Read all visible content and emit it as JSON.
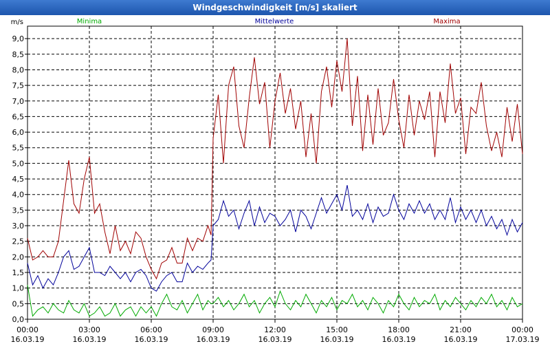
{
  "window": {
    "title": "Windgeschwindigkeit [m/s] skaliert"
  },
  "chart_data": {
    "type": "line",
    "title": "Windgeschwindigkeit [m/s] skaliert",
    "ylabel": "m/s",
    "xlabel": "",
    "ylim": [
      0,
      9.4
    ],
    "xlim": [
      0,
      24
    ],
    "yticks": [
      0,
      0.5,
      1,
      1.5,
      2,
      2.5,
      3,
      3.5,
      4,
      4.5,
      5,
      5.5,
      6,
      6.5,
      7,
      7.5,
      8,
      8.5,
      9
    ],
    "ytick_labels": [
      "0,0",
      "0,5",
      "1,0",
      "1,5",
      "2,0",
      "2,5",
      "3,0",
      "3,5",
      "4,0",
      "4,5",
      "5,0",
      "5,5",
      "6,0",
      "6,5",
      "7,0",
      "7,5",
      "8,0",
      "8,5",
      "9,0"
    ],
    "xticks": [
      {
        "hour": 0,
        "time": "00:00",
        "date": "16.03.19"
      },
      {
        "hour": 3,
        "time": "03:00",
        "date": "16.03.19"
      },
      {
        "hour": 6,
        "time": "06:00",
        "date": "16.03.19"
      },
      {
        "hour": 9,
        "time": "09:00",
        "date": "16.03.19"
      },
      {
        "hour": 12,
        "time": "12:00",
        "date": "16.03.19"
      },
      {
        "hour": 15,
        "time": "15:00",
        "date": "16.03.19"
      },
      {
        "hour": 18,
        "time": "18:00",
        "date": "16.03.19"
      },
      {
        "hour": 21,
        "time": "21:00",
        "date": "16.03.19"
      },
      {
        "hour": 24,
        "time": "00:00",
        "date": "17.03.19"
      }
    ],
    "legend": [
      {
        "name": "Minima",
        "color": "#00aa00"
      },
      {
        "name": "Mittelwerte",
        "color": "#00009a"
      },
      {
        "name": "Maxima",
        "color": "#a00000"
      }
    ],
    "grid": true,
    "series": [
      {
        "name": "Maxima",
        "color": "#a00000",
        "points": [
          [
            0.0,
            2.6
          ],
          [
            0.25,
            1.9
          ],
          [
            0.5,
            2.0
          ],
          [
            0.75,
            2.2
          ],
          [
            1.0,
            2.0
          ],
          [
            1.25,
            2.0
          ],
          [
            1.5,
            2.5
          ],
          [
            1.75,
            3.8
          ],
          [
            2.0,
            5.1
          ],
          [
            2.25,
            3.7
          ],
          [
            2.5,
            3.4
          ],
          [
            2.75,
            4.5
          ],
          [
            3.0,
            5.2
          ],
          [
            3.25,
            3.4
          ],
          [
            3.5,
            3.7
          ],
          [
            3.75,
            2.8
          ],
          [
            4.0,
            2.1
          ],
          [
            4.25,
            3.0
          ],
          [
            4.5,
            2.2
          ],
          [
            4.75,
            2.5
          ],
          [
            5.0,
            2.1
          ],
          [
            5.25,
            2.8
          ],
          [
            5.5,
            2.6
          ],
          [
            5.75,
            2.0
          ],
          [
            6.0,
            1.6
          ],
          [
            6.25,
            1.3
          ],
          [
            6.5,
            1.8
          ],
          [
            6.75,
            1.9
          ],
          [
            7.0,
            2.3
          ],
          [
            7.25,
            1.8
          ],
          [
            7.5,
            1.8
          ],
          [
            7.75,
            2.6
          ],
          [
            8.0,
            2.2
          ],
          [
            8.25,
            2.6
          ],
          [
            8.5,
            2.5
          ],
          [
            8.75,
            3.0
          ],
          [
            8.9,
            2.7
          ],
          [
            9.0,
            5.8
          ],
          [
            9.25,
            7.2
          ],
          [
            9.5,
            5.0
          ],
          [
            9.75,
            7.5
          ],
          [
            10.0,
            8.1
          ],
          [
            10.25,
            6.2
          ],
          [
            10.5,
            5.5
          ],
          [
            10.75,
            7.1
          ],
          [
            11.0,
            8.4
          ],
          [
            11.25,
            6.9
          ],
          [
            11.5,
            7.6
          ],
          [
            11.75,
            5.5
          ],
          [
            12.0,
            7.0
          ],
          [
            12.25,
            7.9
          ],
          [
            12.5,
            6.6
          ],
          [
            12.75,
            7.4
          ],
          [
            13.0,
            6.1
          ],
          [
            13.25,
            7.0
          ],
          [
            13.5,
            5.2
          ],
          [
            13.75,
            6.6
          ],
          [
            14.0,
            5.0
          ],
          [
            14.25,
            7.3
          ],
          [
            14.5,
            8.1
          ],
          [
            14.75,
            6.8
          ],
          [
            15.0,
            8.3
          ],
          [
            15.25,
            7.3
          ],
          [
            15.5,
            9.0
          ],
          [
            15.75,
            6.2
          ],
          [
            16.0,
            7.8
          ],
          [
            16.25,
            5.4
          ],
          [
            16.5,
            7.2
          ],
          [
            16.75,
            5.6
          ],
          [
            17.0,
            7.4
          ],
          [
            17.25,
            5.9
          ],
          [
            17.5,
            6.3
          ],
          [
            17.75,
            7.7
          ],
          [
            18.0,
            6.4
          ],
          [
            18.25,
            5.5
          ],
          [
            18.5,
            7.2
          ],
          [
            18.75,
            5.9
          ],
          [
            19.0,
            7.0
          ],
          [
            19.25,
            6.4
          ],
          [
            19.5,
            7.3
          ],
          [
            19.75,
            5.2
          ],
          [
            20.0,
            7.3
          ],
          [
            20.25,
            6.3
          ],
          [
            20.5,
            8.2
          ],
          [
            20.75,
            6.6
          ],
          [
            21.0,
            7.1
          ],
          [
            21.25,
            5.3
          ],
          [
            21.5,
            6.8
          ],
          [
            21.75,
            6.6
          ],
          [
            22.0,
            7.6
          ],
          [
            22.25,
            6.2
          ],
          [
            22.5,
            5.4
          ],
          [
            22.75,
            6.0
          ],
          [
            23.0,
            5.2
          ],
          [
            23.25,
            6.8
          ],
          [
            23.5,
            5.7
          ],
          [
            23.75,
            6.9
          ],
          [
            24.0,
            5.3
          ]
        ]
      },
      {
        "name": "Mittelwerte",
        "color": "#00009a",
        "points": [
          [
            0.0,
            1.8
          ],
          [
            0.25,
            1.1
          ],
          [
            0.5,
            1.4
          ],
          [
            0.75,
            1.0
          ],
          [
            1.0,
            1.3
          ],
          [
            1.25,
            1.1
          ],
          [
            1.5,
            1.5
          ],
          [
            1.75,
            2.0
          ],
          [
            2.0,
            2.2
          ],
          [
            2.25,
            1.6
          ],
          [
            2.5,
            1.7
          ],
          [
            2.75,
            2.0
          ],
          [
            3.0,
            2.3
          ],
          [
            3.25,
            1.5
          ],
          [
            3.5,
            1.5
          ],
          [
            3.75,
            1.4
          ],
          [
            4.0,
            1.7
          ],
          [
            4.25,
            1.5
          ],
          [
            4.5,
            1.3
          ],
          [
            4.75,
            1.5
          ],
          [
            5.0,
            1.2
          ],
          [
            5.25,
            1.5
          ],
          [
            5.5,
            1.6
          ],
          [
            5.75,
            1.4
          ],
          [
            6.0,
            1.0
          ],
          [
            6.25,
            0.9
          ],
          [
            6.5,
            1.2
          ],
          [
            6.75,
            1.4
          ],
          [
            7.0,
            1.5
          ],
          [
            7.25,
            1.2
          ],
          [
            7.5,
            1.2
          ],
          [
            7.75,
            1.8
          ],
          [
            8.0,
            1.5
          ],
          [
            8.25,
            1.7
          ],
          [
            8.5,
            1.6
          ],
          [
            8.75,
            1.8
          ],
          [
            8.9,
            1.9
          ],
          [
            9.0,
            3.0
          ],
          [
            9.25,
            3.2
          ],
          [
            9.5,
            3.8
          ],
          [
            9.75,
            3.3
          ],
          [
            10.0,
            3.5
          ],
          [
            10.25,
            2.9
          ],
          [
            10.5,
            3.4
          ],
          [
            10.75,
            3.8
          ],
          [
            11.0,
            3.0
          ],
          [
            11.25,
            3.6
          ],
          [
            11.5,
            3.1
          ],
          [
            11.75,
            3.4
          ],
          [
            12.0,
            3.3
          ],
          [
            12.25,
            3.0
          ],
          [
            12.5,
            3.2
          ],
          [
            12.75,
            3.5
          ],
          [
            13.0,
            2.8
          ],
          [
            13.25,
            3.5
          ],
          [
            13.5,
            3.3
          ],
          [
            13.75,
            2.9
          ],
          [
            14.0,
            3.4
          ],
          [
            14.25,
            3.9
          ],
          [
            14.5,
            3.4
          ],
          [
            14.75,
            3.7
          ],
          [
            15.0,
            4.0
          ],
          [
            15.25,
            3.5
          ],
          [
            15.5,
            4.3
          ],
          [
            15.75,
            3.3
          ],
          [
            16.0,
            3.5
          ],
          [
            16.25,
            3.2
          ],
          [
            16.5,
            3.7
          ],
          [
            16.75,
            3.1
          ],
          [
            17.0,
            3.6
          ],
          [
            17.25,
            3.3
          ],
          [
            17.5,
            3.4
          ],
          [
            17.75,
            4.0
          ],
          [
            18.0,
            3.5
          ],
          [
            18.25,
            3.2
          ],
          [
            18.5,
            3.7
          ],
          [
            18.75,
            3.4
          ],
          [
            19.0,
            3.8
          ],
          [
            19.25,
            3.4
          ],
          [
            19.5,
            3.7
          ],
          [
            19.75,
            3.2
          ],
          [
            20.0,
            3.5
          ],
          [
            20.25,
            3.2
          ],
          [
            20.5,
            3.9
          ],
          [
            20.75,
            3.1
          ],
          [
            21.0,
            3.6
          ],
          [
            21.25,
            3.2
          ],
          [
            21.5,
            3.5
          ],
          [
            21.75,
            3.1
          ],
          [
            22.0,
            3.5
          ],
          [
            22.25,
            3.0
          ],
          [
            22.5,
            3.3
          ],
          [
            22.75,
            2.9
          ],
          [
            23.0,
            3.2
          ],
          [
            23.25,
            2.7
          ],
          [
            23.5,
            3.2
          ],
          [
            23.75,
            2.8
          ],
          [
            24.0,
            3.1
          ]
        ]
      },
      {
        "name": "Minima",
        "color": "#00aa00",
        "points": [
          [
            0.0,
            1.1
          ],
          [
            0.25,
            0.1
          ],
          [
            0.5,
            0.3
          ],
          [
            0.75,
            0.4
          ],
          [
            1.0,
            0.2
          ],
          [
            1.25,
            0.5
          ],
          [
            1.5,
            0.3
          ],
          [
            1.75,
            0.2
          ],
          [
            2.0,
            0.6
          ],
          [
            2.25,
            0.3
          ],
          [
            2.5,
            0.2
          ],
          [
            2.75,
            0.5
          ],
          [
            3.0,
            0.1
          ],
          [
            3.25,
            0.2
          ],
          [
            3.5,
            0.4
          ],
          [
            3.75,
            0.1
          ],
          [
            4.0,
            0.2
          ],
          [
            4.25,
            0.5
          ],
          [
            4.5,
            0.1
          ],
          [
            4.75,
            0.3
          ],
          [
            5.0,
            0.4
          ],
          [
            5.25,
            0.1
          ],
          [
            5.5,
            0.4
          ],
          [
            5.75,
            0.2
          ],
          [
            6.0,
            0.4
          ],
          [
            6.25,
            0.1
          ],
          [
            6.5,
            0.5
          ],
          [
            6.75,
            0.8
          ],
          [
            7.0,
            0.4
          ],
          [
            7.25,
            0.3
          ],
          [
            7.5,
            0.6
          ],
          [
            7.75,
            0.2
          ],
          [
            8.0,
            0.5
          ],
          [
            8.25,
            0.8
          ],
          [
            8.5,
            0.3
          ],
          [
            8.75,
            0.6
          ],
          [
            8.9,
            0.5
          ],
          [
            9.0,
            0.5
          ],
          [
            9.25,
            0.7
          ],
          [
            9.5,
            0.4
          ],
          [
            9.75,
            0.6
          ],
          [
            10.0,
            0.3
          ],
          [
            10.25,
            0.5
          ],
          [
            10.5,
            0.8
          ],
          [
            10.75,
            0.4
          ],
          [
            11.0,
            0.6
          ],
          [
            11.25,
            0.2
          ],
          [
            11.5,
            0.5
          ],
          [
            11.75,
            0.7
          ],
          [
            12.0,
            0.4
          ],
          [
            12.25,
            0.9
          ],
          [
            12.5,
            0.5
          ],
          [
            12.75,
            0.3
          ],
          [
            13.0,
            0.6
          ],
          [
            13.25,
            0.4
          ],
          [
            13.5,
            0.8
          ],
          [
            13.75,
            0.5
          ],
          [
            14.0,
            0.2
          ],
          [
            14.25,
            0.6
          ],
          [
            14.5,
            0.4
          ],
          [
            14.75,
            0.7
          ],
          [
            15.0,
            0.3
          ],
          [
            15.25,
            0.6
          ],
          [
            15.5,
            0.5
          ],
          [
            15.75,
            0.8
          ],
          [
            16.0,
            0.4
          ],
          [
            16.25,
            0.6
          ],
          [
            16.5,
            0.3
          ],
          [
            16.75,
            0.7
          ],
          [
            17.0,
            0.5
          ],
          [
            17.25,
            0.2
          ],
          [
            17.5,
            0.6
          ],
          [
            17.75,
            0.4
          ],
          [
            18.0,
            0.8
          ],
          [
            18.25,
            0.5
          ],
          [
            18.5,
            0.3
          ],
          [
            18.75,
            0.7
          ],
          [
            19.0,
            0.4
          ],
          [
            19.25,
            0.6
          ],
          [
            19.5,
            0.5
          ],
          [
            19.75,
            0.8
          ],
          [
            20.0,
            0.3
          ],
          [
            20.25,
            0.6
          ],
          [
            20.5,
            0.4
          ],
          [
            20.75,
            0.7
          ],
          [
            21.0,
            0.5
          ],
          [
            21.25,
            0.3
          ],
          [
            21.5,
            0.6
          ],
          [
            21.75,
            0.4
          ],
          [
            22.0,
            0.7
          ],
          [
            22.25,
            0.5
          ],
          [
            22.5,
            0.8
          ],
          [
            22.75,
            0.4
          ],
          [
            23.0,
            0.6
          ],
          [
            23.25,
            0.3
          ],
          [
            23.5,
            0.7
          ],
          [
            23.75,
            0.4
          ],
          [
            24.0,
            0.5
          ]
        ]
      }
    ]
  }
}
